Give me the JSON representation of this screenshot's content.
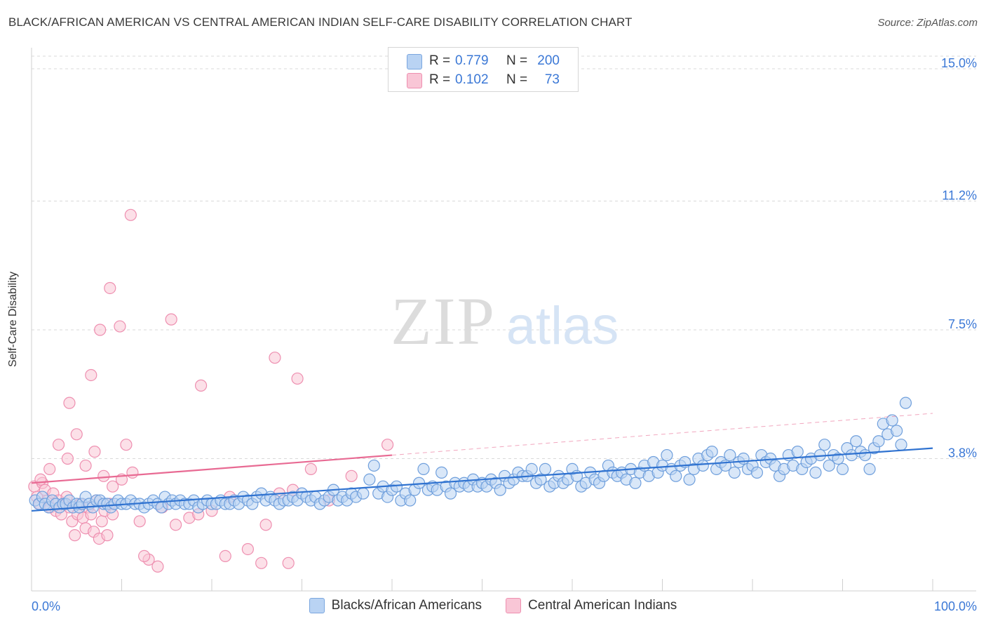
{
  "title": "BLACK/AFRICAN AMERICAN VS CENTRAL AMERICAN INDIAN SELF-CARE DISABILITY CORRELATION CHART",
  "source": "Source: ZipAtlas.com",
  "watermark": {
    "zip": "ZIP",
    "atlas": "atlas"
  },
  "legend_stats": {
    "blue": {
      "r_label": "R =",
      "r_value": "0.779",
      "n_label": "N =",
      "n_value": "200"
    },
    "pink": {
      "r_label": "R =",
      "r_value": "0.102",
      "n_label": "N =",
      "n_value": "73"
    }
  },
  "colors": {
    "blue_fill": "#b9d3f3",
    "blue_stroke": "#6f9fdc",
    "blue_line": "#2f72d0",
    "pink_fill": "#f9c6d6",
    "pink_stroke": "#ee8fb0",
    "pink_line": "#e86a93",
    "axis_text": "#3b78d6",
    "grid": "#d9d9d9"
  },
  "chart_data": {
    "type": "scatter",
    "title": "BLACK/AFRICAN AMERICAN VS CENTRAL AMERICAN INDIAN SELF-CARE DISABILITY CORRELATION CHART",
    "xlabel": "",
    "ylabel": "Self-Care Disability",
    "xlim": [
      0,
      100
    ],
    "ylim": [
      0,
      15
    ],
    "x_tick_labels": [
      "0.0%",
      "100.0%"
    ],
    "y_ticks": [
      3.8,
      7.5,
      11.2,
      15.0
    ],
    "y_tick_labels": [
      "3.8%",
      "7.5%",
      "11.2%",
      "15.0%"
    ],
    "grid": "horizontal dashed",
    "legend_position": "bottom-center",
    "series": [
      {
        "name": "Blacks/African Americans",
        "color": "#6f9fdc",
        "trend": {
          "x": [
            0,
            100
          ],
          "y": [
            2.3,
            4.1
          ]
        },
        "points": [
          [
            0.4,
            2.6
          ],
          [
            0.8,
            2.5
          ],
          [
            1.2,
            2.7
          ],
          [
            1.5,
            2.5
          ],
          [
            1.9,
            2.4
          ],
          [
            2.3,
            2.6
          ],
          [
            2.7,
            2.5
          ],
          [
            3.1,
            2.4
          ],
          [
            3.5,
            2.5
          ],
          [
            3.8,
            2.5
          ],
          [
            4.2,
            2.6
          ],
          [
            4.6,
            2.4
          ],
          [
            5.0,
            2.5
          ],
          [
            5.3,
            2.4
          ],
          [
            5.6,
            2.5
          ],
          [
            6.0,
            2.7
          ],
          [
            6.4,
            2.5
          ],
          [
            6.8,
            2.4
          ],
          [
            7.2,
            2.6
          ],
          [
            7.6,
            2.6
          ],
          [
            8.0,
            2.5
          ],
          [
            8.4,
            2.5
          ],
          [
            8.8,
            2.4
          ],
          [
            9.2,
            2.5
          ],
          [
            9.6,
            2.6
          ],
          [
            10.0,
            2.5
          ],
          [
            10.5,
            2.5
          ],
          [
            11.0,
            2.6
          ],
          [
            11.5,
            2.5
          ],
          [
            12.0,
            2.5
          ],
          [
            12.5,
            2.4
          ],
          [
            13.0,
            2.5
          ],
          [
            13.5,
            2.6
          ],
          [
            14.0,
            2.5
          ],
          [
            14.4,
            2.4
          ],
          [
            14.8,
            2.7
          ],
          [
            15.2,
            2.5
          ],
          [
            15.6,
            2.6
          ],
          [
            16.0,
            2.5
          ],
          [
            16.5,
            2.6
          ],
          [
            17.0,
            2.5
          ],
          [
            17.5,
            2.5
          ],
          [
            18.0,
            2.6
          ],
          [
            18.5,
            2.4
          ],
          [
            19.0,
            2.5
          ],
          [
            19.5,
            2.6
          ],
          [
            20.0,
            2.5
          ],
          [
            20.5,
            2.5
          ],
          [
            21.0,
            2.6
          ],
          [
            21.5,
            2.5
          ],
          [
            22.0,
            2.5
          ],
          [
            22.5,
            2.6
          ],
          [
            23.0,
            2.5
          ],
          [
            23.5,
            2.7
          ],
          [
            24.0,
            2.6
          ],
          [
            24.5,
            2.5
          ],
          [
            25.0,
            2.7
          ],
          [
            25.5,
            2.8
          ],
          [
            26.0,
            2.6
          ],
          [
            26.5,
            2.7
          ],
          [
            27.0,
            2.6
          ],
          [
            27.5,
            2.5
          ],
          [
            28.0,
            2.6
          ],
          [
            28.5,
            2.6
          ],
          [
            29.0,
            2.7
          ],
          [
            29.5,
            2.6
          ],
          [
            30.0,
            2.8
          ],
          [
            30.5,
            2.7
          ],
          [
            31.0,
            2.6
          ],
          [
            31.5,
            2.7
          ],
          [
            32.0,
            2.5
          ],
          [
            32.5,
            2.6
          ],
          [
            33.0,
            2.7
          ],
          [
            33.5,
            2.9
          ],
          [
            34.0,
            2.6
          ],
          [
            34.5,
            2.7
          ],
          [
            35.0,
            2.6
          ],
          [
            35.5,
            2.8
          ],
          [
            36.0,
            2.7
          ],
          [
            36.8,
            2.8
          ],
          [
            37.5,
            3.2
          ],
          [
            38.0,
            3.6
          ],
          [
            38.5,
            2.8
          ],
          [
            39.0,
            3.0
          ],
          [
            39.5,
            2.7
          ],
          [
            40.0,
            2.9
          ],
          [
            40.5,
            3.0
          ],
          [
            41.0,
            2.6
          ],
          [
            41.5,
            2.8
          ],
          [
            42.0,
            2.6
          ],
          [
            42.5,
            2.9
          ],
          [
            43.0,
            3.1
          ],
          [
            43.5,
            3.5
          ],
          [
            44.0,
            2.9
          ],
          [
            44.5,
            3.0
          ],
          [
            45.0,
            2.9
          ],
          [
            45.5,
            3.4
          ],
          [
            46.0,
            3.0
          ],
          [
            46.5,
            2.8
          ],
          [
            47.0,
            3.1
          ],
          [
            47.5,
            3.0
          ],
          [
            48.0,
            3.1
          ],
          [
            48.5,
            3.0
          ],
          [
            49.0,
            3.2
          ],
          [
            49.5,
            3.0
          ],
          [
            50.0,
            3.1
          ],
          [
            50.5,
            3.0
          ],
          [
            51.0,
            3.2
          ],
          [
            51.5,
            3.1
          ],
          [
            52.0,
            2.9
          ],
          [
            52.5,
            3.3
          ],
          [
            53.0,
            3.1
          ],
          [
            53.5,
            3.2
          ],
          [
            54.0,
            3.4
          ],
          [
            54.5,
            3.3
          ],
          [
            55.0,
            3.3
          ],
          [
            55.5,
            3.5
          ],
          [
            56.0,
            3.1
          ],
          [
            56.5,
            3.2
          ],
          [
            57.0,
            3.5
          ],
          [
            57.5,
            3.0
          ],
          [
            58.0,
            3.1
          ],
          [
            58.5,
            3.3
          ],
          [
            59.0,
            3.1
          ],
          [
            59.5,
            3.2
          ],
          [
            60.0,
            3.5
          ],
          [
            60.5,
            3.3
          ],
          [
            61.0,
            3.0
          ],
          [
            61.5,
            3.1
          ],
          [
            62.0,
            3.4
          ],
          [
            62.5,
            3.2
          ],
          [
            63.0,
            3.1
          ],
          [
            63.5,
            3.3
          ],
          [
            64.0,
            3.6
          ],
          [
            64.5,
            3.4
          ],
          [
            65.0,
            3.3
          ],
          [
            65.5,
            3.4
          ],
          [
            66.0,
            3.2
          ],
          [
            66.5,
            3.5
          ],
          [
            67.0,
            3.1
          ],
          [
            67.5,
            3.4
          ],
          [
            68.0,
            3.6
          ],
          [
            68.5,
            3.3
          ],
          [
            69.0,
            3.7
          ],
          [
            69.5,
            3.4
          ],
          [
            70.0,
            3.6
          ],
          [
            70.5,
            3.9
          ],
          [
            71.0,
            3.5
          ],
          [
            71.5,
            3.3
          ],
          [
            72.0,
            3.6
          ],
          [
            72.5,
            3.7
          ],
          [
            73.0,
            3.2
          ],
          [
            73.5,
            3.5
          ],
          [
            74.0,
            3.8
          ],
          [
            74.5,
            3.6
          ],
          [
            75.0,
            3.9
          ],
          [
            75.5,
            4.0
          ],
          [
            76.0,
            3.5
          ],
          [
            76.5,
            3.7
          ],
          [
            77.0,
            3.6
          ],
          [
            77.5,
            3.9
          ],
          [
            78.0,
            3.4
          ],
          [
            78.5,
            3.7
          ],
          [
            79.0,
            3.8
          ],
          [
            79.5,
            3.5
          ],
          [
            80.0,
            3.6
          ],
          [
            80.5,
            3.4
          ],
          [
            81.0,
            3.9
          ],
          [
            81.5,
            3.7
          ],
          [
            82.0,
            3.8
          ],
          [
            82.5,
            3.6
          ],
          [
            83.0,
            3.3
          ],
          [
            83.5,
            3.5
          ],
          [
            84.0,
            3.9
          ],
          [
            84.5,
            3.6
          ],
          [
            85.0,
            4.0
          ],
          [
            85.5,
            3.5
          ],
          [
            86.0,
            3.7
          ],
          [
            86.5,
            3.8
          ],
          [
            87.0,
            3.4
          ],
          [
            87.5,
            3.9
          ],
          [
            88.0,
            4.2
          ],
          [
            88.5,
            3.6
          ],
          [
            89.0,
            3.9
          ],
          [
            89.5,
            3.8
          ],
          [
            90.0,
            3.5
          ],
          [
            90.5,
            4.1
          ],
          [
            91.0,
            3.9
          ],
          [
            91.5,
            4.3
          ],
          [
            92.0,
            4.0
          ],
          [
            92.5,
            3.9
          ],
          [
            93.0,
            3.5
          ],
          [
            93.5,
            4.1
          ],
          [
            94.0,
            4.3
          ],
          [
            94.5,
            4.8
          ],
          [
            95.0,
            4.5
          ],
          [
            95.5,
            4.9
          ],
          [
            96.0,
            4.6
          ],
          [
            96.5,
            4.2
          ],
          [
            97.0,
            5.4
          ]
        ]
      },
      {
        "name": "Central American Indians",
        "color": "#ee8fb0",
        "trend": {
          "x": [
            0,
            40
          ],
          "y": [
            3.1,
            3.9
          ]
        },
        "trend_extension": {
          "x": [
            40,
            100
          ],
          "y": [
            3.9,
            5.1
          ]
        },
        "points": [
          [
            0.3,
            3.0
          ],
          [
            0.6,
            2.7
          ],
          [
            0.9,
            2.5
          ],
          [
            1.2,
            3.1
          ],
          [
            1.5,
            2.9
          ],
          [
            1.8,
            2.6
          ],
          [
            2.1,
            2.4
          ],
          [
            2.4,
            2.8
          ],
          [
            2.7,
            2.3
          ],
          [
            3.0,
            2.6
          ],
          [
            3.3,
            2.2
          ],
          [
            3.6,
            2.5
          ],
          [
            3.9,
            2.7
          ],
          [
            4.2,
            2.4
          ],
          [
            4.5,
            2.0
          ],
          [
            4.8,
            1.6
          ],
          [
            5.1,
            2.2
          ],
          [
            5.4,
            2.5
          ],
          [
            5.7,
            2.1
          ],
          [
            6.0,
            1.8
          ],
          [
            6.3,
            2.4
          ],
          [
            6.6,
            2.2
          ],
          [
            6.9,
            1.7
          ],
          [
            7.2,
            2.6
          ],
          [
            7.5,
            1.5
          ],
          [
            7.8,
            2.0
          ],
          [
            8.1,
            2.3
          ],
          [
            8.4,
            1.6
          ],
          [
            8.7,
            2.5
          ],
          [
            9.0,
            2.2
          ],
          [
            1.0,
            3.2
          ],
          [
            2.0,
            3.5
          ],
          [
            3.0,
            4.2
          ],
          [
            4.0,
            3.8
          ],
          [
            5.0,
            4.5
          ],
          [
            6.0,
            3.6
          ],
          [
            7.0,
            4.0
          ],
          [
            8.0,
            3.3
          ],
          [
            9.0,
            3.0
          ],
          [
            10.0,
            3.2
          ],
          [
            4.2,
            5.4
          ],
          [
            6.6,
            6.2
          ],
          [
            7.6,
            7.5
          ],
          [
            8.7,
            8.7
          ],
          [
            9.8,
            7.6
          ],
          [
            11.0,
            10.8
          ],
          [
            15.5,
            7.8
          ],
          [
            18.8,
            5.9
          ],
          [
            27.0,
            6.7
          ],
          [
            29.5,
            6.1
          ],
          [
            10.5,
            4.2
          ],
          [
            11.2,
            3.4
          ],
          [
            12.0,
            2.0
          ],
          [
            13.0,
            0.9
          ],
          [
            14.5,
            2.4
          ],
          [
            16.0,
            1.9
          ],
          [
            17.5,
            2.1
          ],
          [
            18.5,
            2.2
          ],
          [
            21.5,
            1.0
          ],
          [
            24.0,
            1.2
          ],
          [
            25.5,
            0.8
          ],
          [
            27.5,
            2.8
          ],
          [
            29.0,
            2.9
          ],
          [
            31.0,
            3.5
          ],
          [
            33.0,
            2.6
          ],
          [
            35.5,
            3.3
          ],
          [
            39.5,
            4.2
          ],
          [
            12.5,
            1.0
          ],
          [
            14.0,
            0.7
          ],
          [
            20.0,
            2.3
          ],
          [
            22.0,
            2.7
          ],
          [
            26.0,
            1.9
          ],
          [
            28.5,
            0.8
          ]
        ]
      }
    ]
  },
  "bottom_legend": [
    {
      "label": "Blacks/African Americans"
    },
    {
      "label": "Central American Indians"
    }
  ]
}
